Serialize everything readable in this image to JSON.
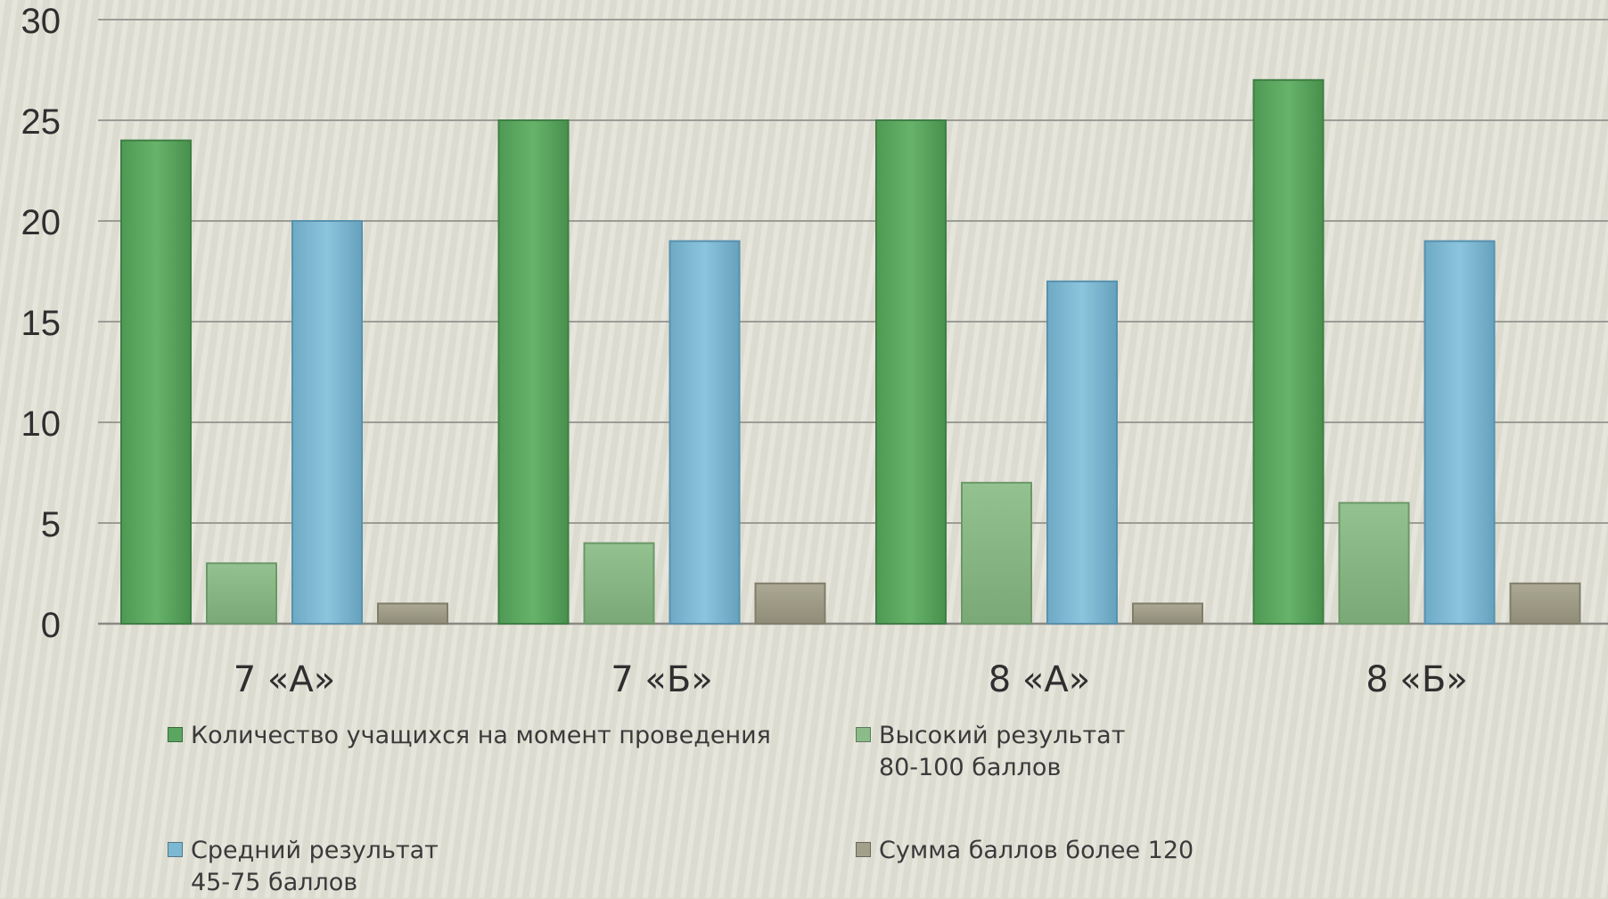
{
  "chart_data": {
    "type": "bar",
    "title": "",
    "xlabel": "",
    "ylabel": "",
    "ylim": [
      0,
      30
    ],
    "yticks": [
      0,
      5,
      10,
      15,
      20,
      25,
      30
    ],
    "grid": true,
    "legend_position": "bottom",
    "categories": [
      "7 «А»",
      "7 «Б»",
      "8 «А»",
      "8 «Б»"
    ],
    "series": [
      {
        "name": "Количество учащихся на момент проведения",
        "values": [
          24,
          25,
          25,
          27
        ],
        "color": "#5aa55f"
      },
      {
        "name": "Высокий результат\n80-100 баллов",
        "values": [
          3,
          4,
          7,
          6
        ],
        "color": "#8cbb8a"
      },
      {
        "name": "Средний результат\n45-75 баллов",
        "values": [
          20,
          19,
          17,
          19
        ],
        "color": "#7db8d2"
      },
      {
        "name": "Сумма баллов более 120",
        "values": [
          1,
          2,
          1,
          2
        ],
        "color": "#a29f8a"
      }
    ]
  }
}
